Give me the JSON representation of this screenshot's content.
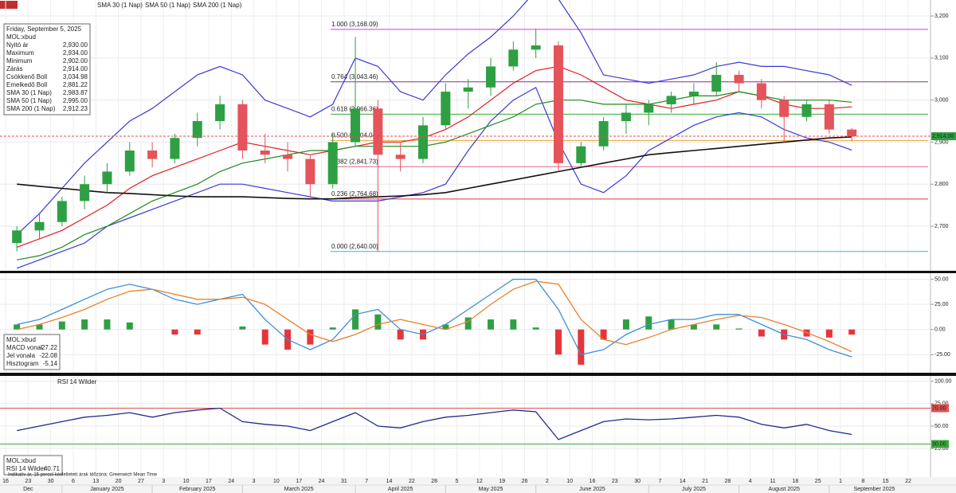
{
  "header": {
    "symbol": "MOL:xbud"
  },
  "x_axis": {
    "months": [
      {
        "label": "Dec",
        "days": [
          16,
          23,
          30
        ]
      },
      {
        "label": "January 2025",
        "days": [
          6,
          13,
          20,
          27
        ]
      },
      {
        "label": "February 2025",
        "days": [
          3,
          10,
          17,
          24
        ]
      },
      {
        "label": "March 2025",
        "days": [
          3,
          10,
          17,
          24,
          31
        ]
      },
      {
        "label": "April 2025",
        "days": [
          7,
          14,
          22,
          28
        ]
      },
      {
        "label": "May 2025",
        "days": [
          5,
          12,
          19,
          26
        ]
      },
      {
        "label": "June 2025",
        "days": [
          2,
          10,
          16,
          23,
          30
        ]
      },
      {
        "label": "July 2025",
        "days": [
          7,
          14,
          21,
          28
        ]
      },
      {
        "label": "August 2025",
        "days": [
          4,
          11,
          18,
          25
        ]
      },
      {
        "label": "September 2025",
        "days": [
          1,
          8,
          15,
          22
        ]
      }
    ]
  },
  "chart_data": [
    {
      "type": "candlestick",
      "date": "Friday, September 5, 2025",
      "ylim": [
        2594,
        3238
      ],
      "yticks": [
        {
          "value": 2700,
          "label": "2,700"
        },
        {
          "value": 2800,
          "label": "2,800"
        },
        {
          "value": 2900,
          "label": "2,900"
        },
        {
          "value": 3000,
          "label": "3,000"
        },
        {
          "value": 3100,
          "label": "3,100"
        },
        {
          "value": 3200,
          "label": "3,200"
        }
      ],
      "up_color": "#2ea043",
      "down_color": "#e5535b",
      "ohlc": {
        "open": {
          "label": "Nyitó ár",
          "value_label": "2,930.00",
          "values": [
            2660,
            2690,
            2710,
            2760,
            2800,
            2830,
            2880,
            2860,
            2910,
            2950,
            2990,
            2880,
            2870,
            2860,
            2800,
            2900,
            2980,
            2870,
            2860,
            2940,
            3020,
            3030,
            3080,
            3120,
            3130,
            2850,
            2890,
            2950,
            2970,
            2990,
            3010,
            3020,
            3060,
            3040,
            3000,
            2960,
            2990,
            2930
          ]
        },
        "high": {
          "label": "Maximum",
          "value_label": "2,934.00",
          "values": [
            2700,
            2730,
            2770,
            2820,
            2850,
            2900,
            2900,
            2920,
            2970,
            3010,
            3000,
            2920,
            2900,
            2870,
            2920,
            3150,
            3000,
            2900,
            2960,
            3040,
            3050,
            3100,
            3140,
            3170,
            3140,
            2900,
            2960,
            2990,
            3000,
            3020,
            3040,
            3090,
            3070,
            3050,
            3010,
            3000,
            3000,
            2934
          ]
        },
        "low": {
          "label": "Minimum",
          "value_label": "2,902.00",
          "values": [
            2640,
            2670,
            2700,
            2740,
            2780,
            2820,
            2840,
            2850,
            2890,
            2930,
            2860,
            2850,
            2830,
            2770,
            2790,
            2890,
            2640,
            2830,
            2850,
            2930,
            2980,
            3010,
            3070,
            3100,
            2830,
            2840,
            2880,
            2920,
            2940,
            2970,
            2990,
            3010,
            3020,
            2980,
            2900,
            2950,
            2920,
            2902
          ]
        },
        "close": {
          "label": "Zárás",
          "value_label": "2,914.00",
          "values": [
            2690,
            2710,
            2760,
            2800,
            2830,
            2880,
            2860,
            2910,
            2950,
            2990,
            2880,
            2870,
            2860,
            2800,
            2900,
            2980,
            2870,
            2860,
            2940,
            3020,
            3030,
            3080,
            3120,
            3130,
            2850,
            2890,
            2950,
            2970,
            2990,
            3010,
            3020,
            3060,
            3040,
            3000,
            2960,
            2990,
            2930,
            2914
          ]
        }
      },
      "series": [
        {
          "name": "Csökkenő Boll",
          "color": "#3a3ad8",
          "value_label": "3,034.98",
          "values": [
            2680,
            2730,
            2790,
            2850,
            2900,
            2950,
            2980,
            3020,
            3060,
            3080,
            3060,
            3000,
            2980,
            2960,
            2990,
            3100,
            3080,
            3020,
            3000,
            3060,
            3110,
            3150,
            3200,
            3260,
            3240,
            3160,
            3060,
            3050,
            3040,
            3050,
            3060,
            3080,
            3090,
            3080,
            3080,
            3070,
            3060,
            3034.98
          ]
        },
        {
          "name": "Emelkedő Boll",
          "color": "#3a3ad8",
          "value_label": "2,881.22",
          "values": [
            2600,
            2620,
            2640,
            2660,
            2700,
            2720,
            2740,
            2760,
            2780,
            2800,
            2800,
            2790,
            2780,
            2770,
            2760,
            2760,
            2760,
            2770,
            2780,
            2800,
            2880,
            2950,
            3000,
            3030,
            2900,
            2800,
            2780,
            2820,
            2880,
            2910,
            2940,
            2960,
            2970,
            2960,
            2930,
            2910,
            2900,
            2881.22
          ]
        },
        {
          "name": "SMA 30 (1 Nap)",
          "color": "#e01e1e",
          "value_label": "2,983.87",
          "values": [
            2650,
            2670,
            2690,
            2720,
            2750,
            2790,
            2820,
            2840,
            2860,
            2880,
            2900,
            2890,
            2880,
            2870,
            2880,
            2890,
            2900,
            2900,
            2910,
            2930,
            2960,
            3000,
            3040,
            3070,
            3080,
            3060,
            3030,
            3000,
            2990,
            2980,
            2990,
            3000,
            3020,
            3010,
            2990,
            2980,
            2980,
            2983.87
          ]
        },
        {
          "name": "SMA 50 (1 Nap)",
          "color": "#1f8a1f",
          "value_label": "2,995.00",
          "values": [
            2620,
            2630,
            2650,
            2680,
            2700,
            2730,
            2760,
            2780,
            2800,
            2830,
            2850,
            2860,
            2870,
            2880,
            2880,
            2890,
            2890,
            2890,
            2890,
            2900,
            2920,
            2940,
            2960,
            2990,
            3000,
            3000,
            2990,
            2990,
            2990,
            3000,
            3010,
            3010,
            3020,
            3010,
            3000,
            3000,
            3000,
            2995
          ]
        },
        {
          "name": "SMA 200 (1 Nap)",
          "color": "#111111",
          "value_label": "2,912.23",
          "values": [
            2800,
            2795,
            2790,
            2785,
            2780,
            2778,
            2775,
            2772,
            2770,
            2770,
            2770,
            2768,
            2766,
            2765,
            2765,
            2768,
            2770,
            2772,
            2775,
            2780,
            2790,
            2800,
            2810,
            2820,
            2830,
            2840,
            2850,
            2860,
            2870,
            2875,
            2880,
            2885,
            2890,
            2895,
            2900,
            2905,
            2910,
            2912.23
          ]
        }
      ],
      "levels": [
        {
          "label": "1.000 (3,168.09)",
          "value": 3168.09,
          "color": "#d63ad6"
        },
        {
          "label": "0.764 (3,043.46)",
          "value": 3043.46,
          "color": "#8e2a9e"
        },
        {
          "label": "0.618 (2,966.36)",
          "value": 2966.36,
          "color": "#3aa83a"
        },
        {
          "label": "0.500 (2,904.04)",
          "value": 2904.04,
          "color": "#e8a33a"
        },
        {
          "label": "0.382 (2,841.73)",
          "value": 2841.73,
          "color": "#d86a8a"
        },
        {
          "label": "0.236 (2,764.68)",
          "value": 2764.68,
          "color": "#d83a3a"
        },
        {
          "label": "0.000 (2,640.00)",
          "value": 2640.0,
          "color": "#2ab8d8"
        }
      ]
    },
    {
      "type": "macd",
      "ylim": [
        -43,
        56
      ],
      "yticks": [
        {
          "value": 50,
          "label": "50.00"
        },
        {
          "value": 25,
          "label": "25.00"
        },
        {
          "value": 0,
          "label": "0.00"
        },
        {
          "value": -25,
          "label": "-25.00"
        }
      ],
      "series": [
        {
          "name": "MACD vonal",
          "color": "#3d8fd9",
          "value_label": "-27.22",
          "values": [
            5,
            10,
            20,
            30,
            40,
            45,
            40,
            30,
            25,
            30,
            35,
            10,
            -10,
            -20,
            -10,
            15,
            20,
            0,
            -5,
            5,
            20,
            35,
            50,
            50,
            20,
            -25,
            -20,
            -5,
            5,
            10,
            10,
            15,
            15,
            5,
            -5,
            -10,
            -20,
            -27.22
          ]
        },
        {
          "name": "Jel vonala",
          "color": "#e8822a",
          "value_label": "-22.08",
          "values": [
            0,
            5,
            12,
            20,
            30,
            38,
            40,
            35,
            30,
            30,
            32,
            25,
            10,
            -5,
            -12,
            -5,
            5,
            10,
            5,
            0,
            8,
            25,
            40,
            48,
            45,
            10,
            -10,
            -15,
            -8,
            0,
            5,
            10,
            14,
            12,
            5,
            -3,
            -12,
            -22.08
          ]
        }
      ],
      "histogram": {
        "name": "Hisztogram",
        "value_label": "-5.14",
        "up_color": "#2ea043",
        "down_color": "#e5353b",
        "values": [
          5,
          5,
          8,
          10,
          10,
          7,
          0,
          -5,
          -5,
          0,
          3,
          -15,
          -20,
          -15,
          2,
          20,
          15,
          -10,
          -10,
          5,
          12,
          10,
          10,
          2,
          -25,
          -35,
          -10,
          10,
          13,
          10,
          5,
          5,
          1,
          -7,
          -10,
          -7,
          -8,
          -5.14
        ]
      }
    },
    {
      "type": "rsi",
      "title": "RSI 14 Wilder",
      "ylim": [
        -6,
        106
      ],
      "yticks": [
        {
          "value": 100,
          "label": "100.00"
        },
        {
          "value": 75,
          "label": "75.00"
        },
        {
          "value": 50,
          "label": "50.00"
        },
        {
          "value": 25,
          "label": "25.00"
        }
      ],
      "levels": [
        {
          "value": 70,
          "label": "70.00",
          "color": "#e05050"
        },
        {
          "value": 30,
          "label": "30.00",
          "color": "#3aa83a"
        }
      ],
      "series": [
        {
          "name": "RSI 14 Wilder",
          "color": "#1f2a8a",
          "value_label": "40.71",
          "values": [
            45,
            50,
            55,
            60,
            62,
            65,
            60,
            65,
            68,
            70,
            55,
            52,
            50,
            45,
            55,
            65,
            50,
            48,
            55,
            60,
            62,
            65,
            68,
            66,
            35,
            45,
            55,
            58,
            57,
            58,
            60,
            62,
            60,
            52,
            48,
            52,
            45,
            40.71
          ]
        }
      ]
    }
  ],
  "footer": "Indikatív ár, 15 percel késleltetett árak   Időzóna: Greenwich Mean Time"
}
